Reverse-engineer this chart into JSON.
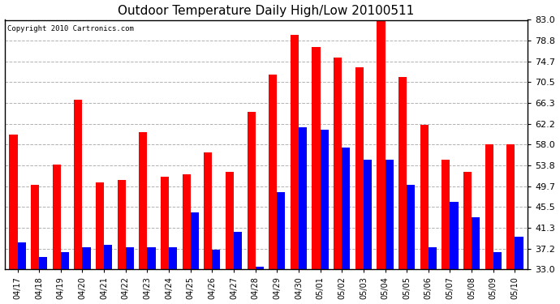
{
  "title": "Outdoor Temperature Daily High/Low 20100511",
  "copyright": "Copyright 2010 Cartronics.com",
  "dates": [
    "04/17",
    "04/18",
    "04/19",
    "04/20",
    "04/21",
    "04/22",
    "04/23",
    "04/24",
    "04/25",
    "04/26",
    "04/27",
    "04/28",
    "04/29",
    "04/30",
    "05/01",
    "05/02",
    "05/03",
    "05/04",
    "05/05",
    "05/06",
    "05/07",
    "05/08",
    "05/09",
    "05/10"
  ],
  "highs": [
    60.0,
    50.0,
    54.0,
    67.0,
    50.5,
    51.0,
    60.5,
    51.5,
    52.0,
    56.5,
    52.5,
    64.5,
    72.0,
    80.0,
    77.5,
    75.5,
    73.5,
    83.0,
    71.5,
    62.0,
    55.0,
    52.5,
    58.0,
    58.0
  ],
  "lows": [
    38.5,
    35.5,
    36.5,
    37.5,
    38.0,
    37.5,
    37.5,
    37.5,
    44.5,
    37.0,
    40.5,
    33.5,
    48.5,
    61.5,
    61.0,
    57.5,
    55.0,
    55.0,
    50.0,
    37.5,
    46.5,
    43.5,
    36.5,
    39.5
  ],
  "high_color": "#ff0000",
  "low_color": "#0000ff",
  "ylim_min": 33.0,
  "ylim_max": 83.0,
  "yticks": [
    33.0,
    37.2,
    41.3,
    45.5,
    49.7,
    53.8,
    58.0,
    62.2,
    66.3,
    70.5,
    74.7,
    78.8,
    83.0
  ],
  "background_color": "#ffffff",
  "plot_bg_color": "#ffffff",
  "grid_color": "#aaaaaa",
  "bar_width": 0.38
}
